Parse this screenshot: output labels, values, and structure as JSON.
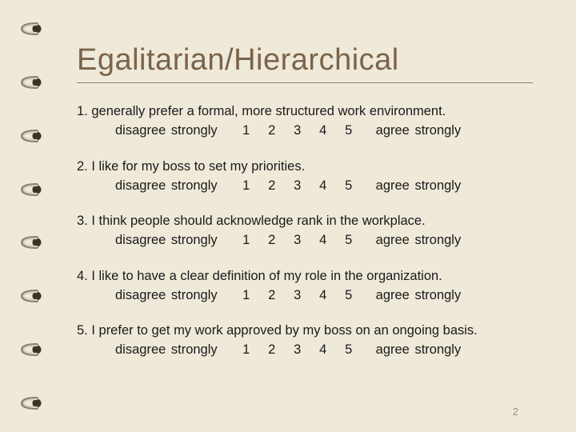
{
  "background_color": "#efe9d9",
  "title_color": "#7a644a",
  "text_color": "#1a1a1a",
  "rule_color": "#8b826f",
  "pagenum_color": "#9d8e73",
  "title": "Egalitarian/Hierarchical",
  "title_fontsize": 38,
  "body_fontsize": 16.5,
  "scale_low_label": "disagree strongly",
  "scale_high_label": "agree strongly",
  "scale_points": [
    "1",
    "2",
    "3",
    "4",
    "5"
  ],
  "questions": [
    {
      "num": "1.",
      "text": "generally prefer a formal, more structured work environment."
    },
    {
      "num": "2.",
      "text": "I like for my boss to set my priorities."
    },
    {
      "num": "3.",
      "text": "I think people should acknowledge rank in the workplace."
    },
    {
      "num": "4.",
      "text": "I like to have a clear definition of my role in the organization."
    },
    {
      "num": "5.",
      "text": "I prefer to get my work approved by my boss on an ongoing basis."
    }
  ],
  "page_number": "2",
  "ring_count": 8,
  "ring_colors": {
    "metal_light": "#d8d2c0",
    "metal_dark": "#8a8470",
    "hole": "#3a332a"
  }
}
